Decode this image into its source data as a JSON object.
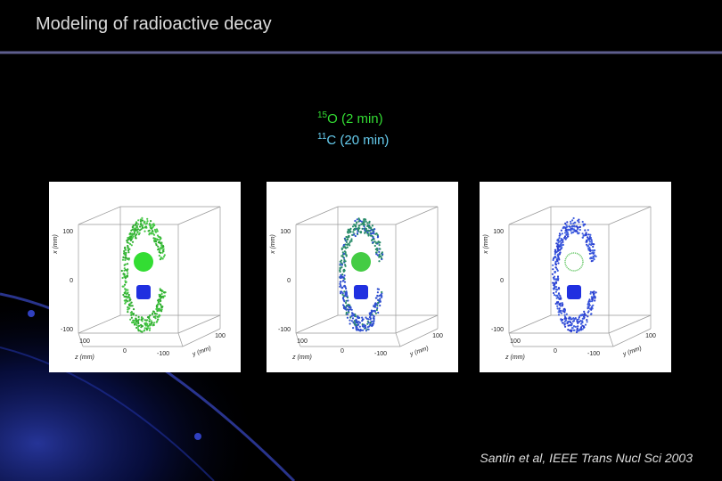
{
  "header": {
    "title": "Modeling of radioactive decay"
  },
  "legend": [
    {
      "mass": "15",
      "label": "O (2 min)"
    },
    {
      "mass": "11",
      "label": "C (20 min)"
    }
  ],
  "panels": [
    {
      "x_label": "x (mm)",
      "x_ticks": [
        "100",
        "0",
        "-100"
      ],
      "z_label": "z (mm)",
      "z_ticks": [
        "100",
        "0",
        "-100"
      ],
      "y_label": "y (mm)",
      "y_ticks": [
        "100"
      ]
    },
    {
      "x_label": "x (mm)",
      "x_ticks": [
        "100",
        "0",
        "-100"
      ],
      "z_label": "z (mm)",
      "z_ticks": [
        "100",
        "0",
        "-100"
      ],
      "y_label": "y (mm)",
      "y_ticks": [
        "100"
      ]
    },
    {
      "x_label": "x (mm)",
      "x_ticks": [
        "100",
        "0",
        "-100"
      ],
      "z_label": "z (mm)",
      "z_ticks": [
        "100",
        "0",
        "-100"
      ],
      "y_label": "y (mm)",
      "y_ticks": [
        "100"
      ]
    }
  ],
  "citation": "Santin et al, IEEE Trans Nucl Sci 2003"
}
